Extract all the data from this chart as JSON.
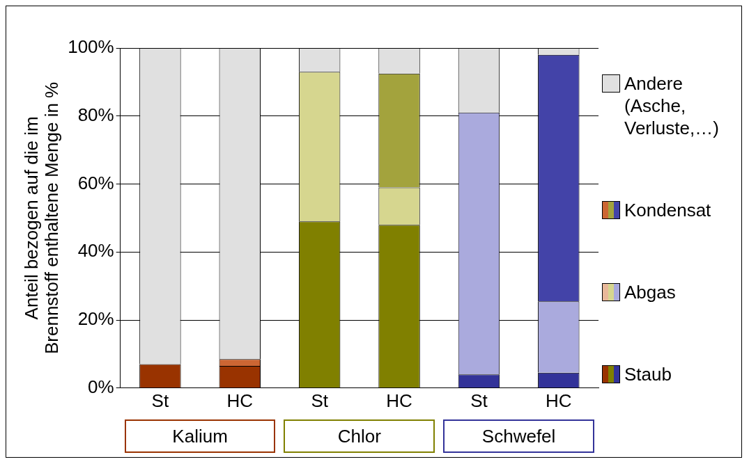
{
  "chart_data": {
    "type": "bar",
    "stacked": true,
    "ylabel": "Anteil bezogen auf die im Brennstoff enthaltene Menge in %",
    "categories": [
      "St",
      "HC",
      "St",
      "HC",
      "St",
      "HC"
    ],
    "series": [
      {
        "name": "Staub",
        "colors": [
          "#993300",
          "#993300",
          "#808000",
          "#808000",
          "#333399",
          "#333399"
        ],
        "values": [
          7,
          6.5,
          49,
          48,
          4,
          4.5
        ]
      },
      {
        "name": "Abgas",
        "colors": [
          "#e8b89a",
          "#e8b89a",
          "#d6d68f",
          "#d6d68f",
          "#aaaadd",
          "#aaaadd"
        ],
        "values": [
          0,
          0,
          44,
          11,
          77,
          21
        ]
      },
      {
        "name": "Kondensat",
        "colors": [
          "#cc6633",
          "#cc6633",
          "#a3a33d",
          "#a3a33d",
          "#4343a8",
          "#4343a8"
        ],
        "values": [
          0,
          2,
          0,
          33.5,
          0,
          72.5
        ]
      },
      {
        "name": "Andere (Asche, Verluste,…)",
        "colors": [
          "#e0e0e0",
          "#e0e0e0",
          "#e0e0e0",
          "#e0e0e0",
          "#e0e0e0",
          "#e0e0e0"
        ],
        "values": [
          93,
          91.5,
          7,
          7.5,
          19,
          2
        ]
      }
    ],
    "ylim": [
      0,
      100
    ],
    "yticks": [
      {
        "value": 0,
        "label": "0%"
      },
      {
        "value": 20,
        "label": "20%"
      },
      {
        "value": 40,
        "label": "40%"
      },
      {
        "value": 60,
        "label": "60%"
      },
      {
        "value": 80,
        "label": "80%"
      },
      {
        "value": 100,
        "label": "100%"
      }
    ],
    "grid": "y",
    "legend": "right",
    "annotations": [
      "Kalium",
      "Chlor",
      "Schwefel"
    ]
  }
}
